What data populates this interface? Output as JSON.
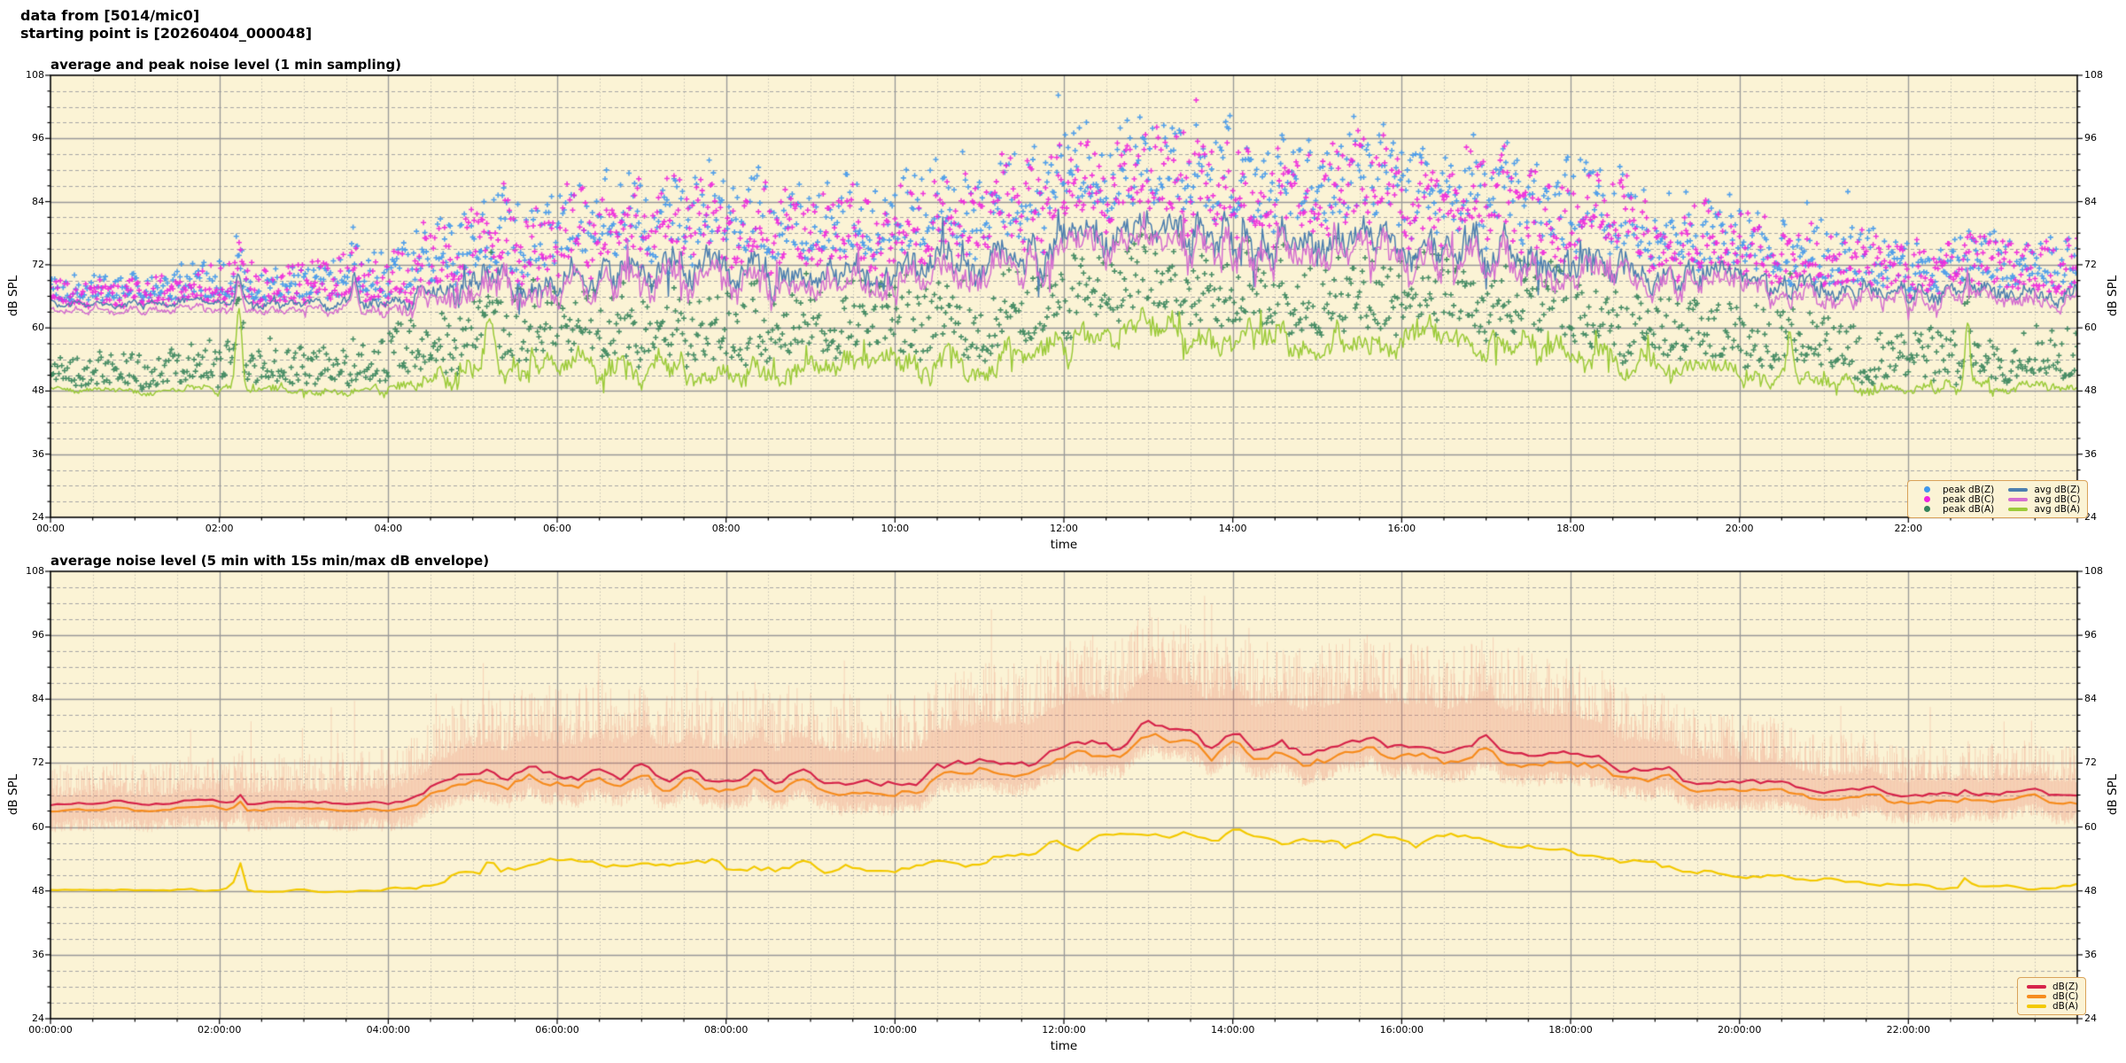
{
  "header": {
    "line1": "data from [5014/mic0]",
    "line2": "starting point is [20260404_000048]"
  },
  "colors": {
    "page_bg": "#ffffff",
    "plot_bg": "#fbf3d5",
    "grid_major": "#999999",
    "grid_minor_h": "#a6a6a6",
    "grid_minor_v": "#bdbab0",
    "spine": "#000000",
    "legend_bg": "#fbf3d5",
    "legend_border": "#d9a259"
  },
  "seed": 20260404,
  "chart_data": [
    {
      "type": "line+scatter",
      "title": "average and peak noise level (1 min sampling)",
      "xlabel": "time",
      "ylabel_left": "dB SPL",
      "ylabel_right": "dB SPL",
      "ylim": [
        24,
        108
      ],
      "yticks": [
        108,
        96,
        84,
        72,
        60,
        48,
        36,
        24
      ],
      "y_minor_step": 3,
      "xlim_hours": [
        0,
        24
      ],
      "xtick_hours": [
        0,
        2,
        4,
        6,
        8,
        10,
        12,
        14,
        16,
        18,
        20,
        22
      ],
      "xtick_labels": [
        "00:00",
        "02:00",
        "04:00",
        "06:00",
        "08:00",
        "10:00",
        "12:00",
        "14:00",
        "16:00",
        "18:00",
        "20:00",
        "22:00"
      ],
      "x_minor_hours": 0.5,
      "sampling_minutes": 1,
      "series": [
        {
          "name": "avg dB(Z)",
          "key": "Z",
          "color": "#4d7fb0",
          "noise_key": "zc",
          "line_width": 1.5,
          "trend_by_hour": [
            64.5,
            64.5,
            64.7,
            64.5,
            64.8,
            69,
            70.5,
            70,
            70,
            69.5,
            69.5,
            71,
            75,
            77.5,
            76.5,
            75.5,
            76,
            75.5,
            73,
            70.5,
            68.5,
            67,
            66.5,
            66.5,
            66.5
          ],
          "noise_amp_by_hour": [
            0.8,
            0.8,
            1.2,
            1.0,
            1.6,
            4.0,
            4.0,
            4.0,
            4.0,
            4.0,
            4.0,
            4.5,
            4.5,
            4.5,
            4.5,
            4.5,
            4.5,
            4.5,
            4.0,
            3.5,
            3.0,
            2.5,
            2.0,
            2.0,
            2.0
          ]
        },
        {
          "name": "avg dB(C)",
          "key": "C",
          "color": "#d570d0",
          "noise_key": "zc",
          "line_width": 1.5,
          "trend_by_hour": [
            63.3,
            63.3,
            63.5,
            63.3,
            63.5,
            67.4,
            68.7,
            68.2,
            68.2,
            67.7,
            67.7,
            69.2,
            73.0,
            75.5,
            74.5,
            73.5,
            74.0,
            73.5,
            71.2,
            68.9,
            67.0,
            65.6,
            65.2,
            65.2,
            65.2
          ],
          "noise_amp_by_hour": [
            0.8,
            0.8,
            1.2,
            1.0,
            1.6,
            4.0,
            4.0,
            4.0,
            4.0,
            4.0,
            4.0,
            4.5,
            4.5,
            4.5,
            4.5,
            4.5,
            4.5,
            4.5,
            4.0,
            3.5,
            3.0,
            2.5,
            2.0,
            2.0,
            2.0
          ]
        },
        {
          "name": "avg dB(A)",
          "key": "A",
          "color": "#9ccb3a",
          "noise_key": "a",
          "line_width": 1.5,
          "trend_by_hour": [
            48.0,
            48.0,
            48.3,
            48.0,
            48.2,
            51.5,
            53.0,
            52.5,
            52.5,
            52.5,
            52.5,
            53.5,
            56.5,
            59.5,
            58.0,
            57.0,
            57.5,
            57.0,
            54.5,
            52.5,
            51.0,
            49.5,
            48.7,
            48.7,
            48.7
          ],
          "noise_amp_by_hour": [
            0.7,
            0.7,
            1.0,
            0.8,
            1.3,
            3.0,
            3.0,
            3.0,
            3.0,
            3.0,
            3.0,
            3.5,
            3.5,
            4.0,
            3.5,
            3.5,
            3.5,
            3.5,
            3.0,
            2.5,
            2.0,
            1.8,
            1.5,
            1.5,
            1.5
          ]
        }
      ],
      "scatter": [
        {
          "name": "peak dB(Z)",
          "key": "Z",
          "color": "#3f97ec",
          "base": "avg dB(Z)",
          "shift": 0,
          "offset_by_hour": [
            1.8,
            1.8,
            2.2,
            2.2,
            3.0,
            6.0,
            8.0,
            8.0,
            8.0,
            8.0,
            8.0,
            9.0,
            11.0,
            12.0,
            11.0,
            11.0,
            11.0,
            11.0,
            9.0,
            7.0,
            5.0,
            4.0,
            3.5,
            3.5,
            3.5
          ],
          "spread_by_hour": [
            3.0,
            3.0,
            5.0,
            5.0,
            6.0,
            8.0,
            9.0,
            9.0,
            9.0,
            9.0,
            9.0,
            9.0,
            9.0,
            9.0,
            9.0,
            9.0,
            9.0,
            9.0,
            9.0,
            8.0,
            7.0,
            7.0,
            6.0,
            6.0,
            6.0
          ]
        },
        {
          "name": "peak dB(C)",
          "key": "C",
          "color": "#ee22dd",
          "base": "avg dB(C)",
          "shift": 0.3,
          "offset_by_hour": [
            1.8,
            1.8,
            2.2,
            2.2,
            3.0,
            6.0,
            8.0,
            8.0,
            8.0,
            8.0,
            8.0,
            9.0,
            11.0,
            12.0,
            11.0,
            11.0,
            11.0,
            11.0,
            9.0,
            7.0,
            5.0,
            4.0,
            3.5,
            3.5,
            3.5
          ],
          "spread_by_hour": [
            3.0,
            3.0,
            5.0,
            5.0,
            6.0,
            8.0,
            9.0,
            9.0,
            9.0,
            9.0,
            9.0,
            9.0,
            9.0,
            9.0,
            9.0,
            9.0,
            9.0,
            9.0,
            9.0,
            8.0,
            7.0,
            7.0,
            6.0,
            6.0,
            6.0
          ]
        },
        {
          "name": "peak dB(A)",
          "key": "A",
          "color": "#35835a",
          "base": "avg dB(A)",
          "shift": 0,
          "offset_by_hour": [
            2.0,
            2.0,
            3.0,
            3.0,
            3.5,
            5.0,
            6.0,
            6.0,
            6.0,
            6.0,
            6.0,
            6.5,
            7.0,
            8.0,
            7.0,
            7.0,
            7.0,
            7.0,
            6.0,
            5.0,
            4.5,
            4.0,
            3.5,
            3.5,
            3.5
          ],
          "spread_by_hour": [
            4.0,
            4.0,
            5.0,
            5.0,
            6.0,
            7.0,
            8.0,
            8.0,
            8.0,
            8.0,
            8.0,
            8.0,
            8.0,
            8.0,
            8.0,
            8.0,
            8.0,
            8.0,
            8.0,
            7.0,
            7.0,
            7.0,
            6.0,
            6.0,
            6.0
          ]
        }
      ],
      "events": [
        {
          "hour": 2.23,
          "width": 0.05,
          "amp": {
            "Z": 6,
            "C": 6,
            "A": 16
          }
        },
        {
          "hour": 3.6,
          "width": 0.04,
          "amp": {
            "Z": 5,
            "C": 5
          }
        },
        {
          "hour": 5.2,
          "width": 0.06,
          "amp": {
            "A": 9
          }
        },
        {
          "hour": 20.6,
          "width": 0.05,
          "amp": {
            "A": 8
          }
        },
        {
          "hour": 22.7,
          "width": 0.04,
          "amp": {
            "Z": 4,
            "C": 4,
            "A": 12
          }
        }
      ],
      "legend": {
        "col1": [
          "peak dB(Z)",
          "peak dB(C)",
          "peak dB(A)"
        ],
        "col2": [
          "avg dB(Z)",
          "avg dB(C)",
          "avg dB(A)"
        ]
      }
    },
    {
      "type": "line+envelope",
      "title": "average noise level (5 min with 15s min/max dB envelope)",
      "xlabel": "time",
      "ylabel_left": "dB SPL",
      "ylabel_right": "dB SPL",
      "ylim": [
        24,
        108
      ],
      "yticks": [
        108,
        96,
        84,
        72,
        60,
        48,
        36,
        24
      ],
      "y_minor_step": 3,
      "xlim_hours": [
        0,
        24
      ],
      "xtick_hours": [
        0,
        2,
        4,
        6,
        8,
        10,
        12,
        14,
        16,
        18,
        20,
        22
      ],
      "xtick_labels": [
        "00:00:00",
        "02:00:00",
        "04:00:00",
        "06:00:00",
        "08:00:00",
        "10:00:00",
        "12:00:00",
        "14:00:00",
        "16:00:00",
        "18:00:00",
        "20:00:00",
        "22:00:00"
      ],
      "x_minor_hours": 0.5,
      "sampling_minutes": 5,
      "series": [
        {
          "name": "dB(Z)",
          "key": "Z",
          "color": "#d6244a",
          "noise_key": "zc",
          "line_width": 2.2,
          "trend_by_hour": [
            64.5,
            64.5,
            64.7,
            64.5,
            64.8,
            69,
            70.5,
            70,
            70,
            69.5,
            69.5,
            71,
            75,
            77.5,
            76.5,
            75.5,
            76,
            75.5,
            73,
            70.5,
            68.5,
            67,
            66.5,
            66.5,
            66.5
          ],
          "noise_amp_by_hour": [
            0.5,
            0.5,
            0.6,
            0.5,
            0.8,
            1.8,
            2.0,
            2.0,
            2.0,
            2.0,
            2.0,
            2.2,
            2.2,
            2.5,
            2.2,
            2.2,
            2.2,
            2.2,
            2.0,
            1.8,
            1.5,
            1.2,
            1.0,
            1.0,
            1.0
          ]
        },
        {
          "name": "dB(C)",
          "key": "C",
          "color": "#f68c1e",
          "noise_key": "zc",
          "line_width": 2.2,
          "trend_by_hour": [
            63.3,
            63.3,
            63.5,
            63.3,
            63.5,
            67.4,
            68.7,
            68.2,
            68.2,
            67.7,
            67.7,
            69.2,
            73.0,
            75.5,
            74.5,
            73.5,
            74.0,
            73.5,
            71.2,
            68.9,
            67.0,
            65.6,
            65.2,
            65.2,
            65.2
          ],
          "noise_amp_by_hour": [
            0.5,
            0.5,
            0.6,
            0.5,
            0.8,
            1.8,
            2.0,
            2.0,
            2.0,
            2.0,
            2.0,
            2.2,
            2.2,
            2.5,
            2.2,
            2.2,
            2.2,
            2.2,
            2.0,
            1.8,
            1.5,
            1.2,
            1.0,
            1.0,
            1.0
          ]
        },
        {
          "name": "dB(A)",
          "key": "A",
          "color": "#f3c900",
          "noise_key": "a",
          "line_width": 2.2,
          "trend_by_hour": [
            48.0,
            48.0,
            48.3,
            48.0,
            48.2,
            51.5,
            53.0,
            52.5,
            52.5,
            52.5,
            52.5,
            53.5,
            56.5,
            59.5,
            58.0,
            57.0,
            57.5,
            57.0,
            54.5,
            52.5,
            51.0,
            49.5,
            48.7,
            48.7,
            48.7
          ],
          "noise_amp_by_hour": [
            0.4,
            0.4,
            0.5,
            0.4,
            0.6,
            1.5,
            1.6,
            1.6,
            1.6,
            1.6,
            1.6,
            1.8,
            1.8,
            2.0,
            1.8,
            1.8,
            1.8,
            1.8,
            1.6,
            1.4,
            1.2,
            1.0,
            0.8,
            0.8,
            0.8
          ]
        }
      ],
      "envelope": {
        "color": "#e97660",
        "alpha": 0.3,
        "stroke_seconds": 30,
        "up_base_by_hour": [
          1.5,
          1.5,
          2.0,
          2.0,
          2.5,
          5.0,
          6.0,
          6.0,
          6.0,
          6.0,
          6.0,
          7.0,
          8.0,
          9.0,
          8.0,
          8.0,
          8.0,
          8.0,
          7.0,
          5.0,
          4.0,
          3.0,
          2.5,
          2.5,
          2.5
        ],
        "up_range_by_hour": [
          6.0,
          6.0,
          7.0,
          7.0,
          8.0,
          10,
          11,
          11,
          11,
          11,
          11,
          12,
          12,
          12,
          12,
          12,
          12,
          12,
          11,
          10,
          9,
          8,
          7,
          7,
          7
        ],
        "down_base": 1.5,
        "down_range": 2.5
      },
      "events": [
        {
          "hour": 2.23,
          "width": 0.05,
          "amp": {
            "Z": 6,
            "C": 6,
            "A": 16
          }
        },
        {
          "hour": 5.2,
          "width": 0.06,
          "amp": {
            "A": 9
          }
        },
        {
          "hour": 22.7,
          "width": 0.04,
          "amp": {
            "Z": 4,
            "C": 4,
            "A": 12
          }
        }
      ],
      "legend": {
        "items": [
          "dB(Z)",
          "dB(C)",
          "dB(A)"
        ]
      }
    }
  ]
}
